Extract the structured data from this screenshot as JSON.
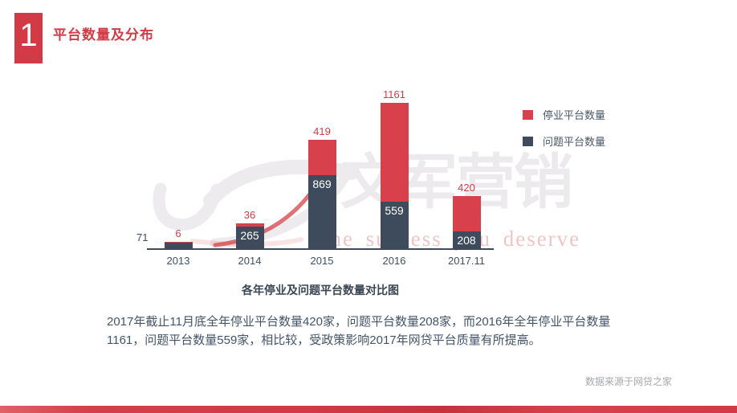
{
  "header": {
    "index_number": "1",
    "title": "平台数量及分布"
  },
  "legend": [
    {
      "label": "停业平台数量",
      "color": "#d8414c"
    },
    {
      "label": "问题平台数量",
      "color": "#3d4b5d"
    }
  ],
  "chart_data": {
    "type": "bar",
    "stacked": true,
    "title": "各年停业及问题平台数量对比图",
    "categories": [
      "2013",
      "2014",
      "2015",
      "2016",
      "2017.11"
    ],
    "series": [
      {
        "name": "问题平台数量",
        "color": "#3d4b5d",
        "values": [
          71,
          265,
          869,
          559,
          208
        ]
      },
      {
        "name": "停业平台数量",
        "color": "#d8414c",
        "values": [
          6,
          36,
          419,
          1161,
          420
        ]
      }
    ],
    "ylim": [
      0,
      1720
    ],
    "grid": false,
    "legend_position": "top-right",
    "value_labels": true
  },
  "body_text": "2017年截止11月底全年停业平台数量420家，问题平台数量208家，而2016年全年停业平台数量1161，问题平台数量559家，相比较，受政策影响2017年网贷平台质量有所提高。",
  "source_note": "数据来源于网贷之家",
  "watermark": {
    "logo": "uj-swoosh",
    "text": "文军营销",
    "tagline": "the success you deserve"
  },
  "colors": {
    "accent_red": "#d23b46",
    "bar_red": "#d8414c",
    "bar_dark": "#3d4b5d",
    "body_text": "#44546a",
    "source_gray": "#a4a8ac",
    "watermark_gray": "#eceaec"
  }
}
